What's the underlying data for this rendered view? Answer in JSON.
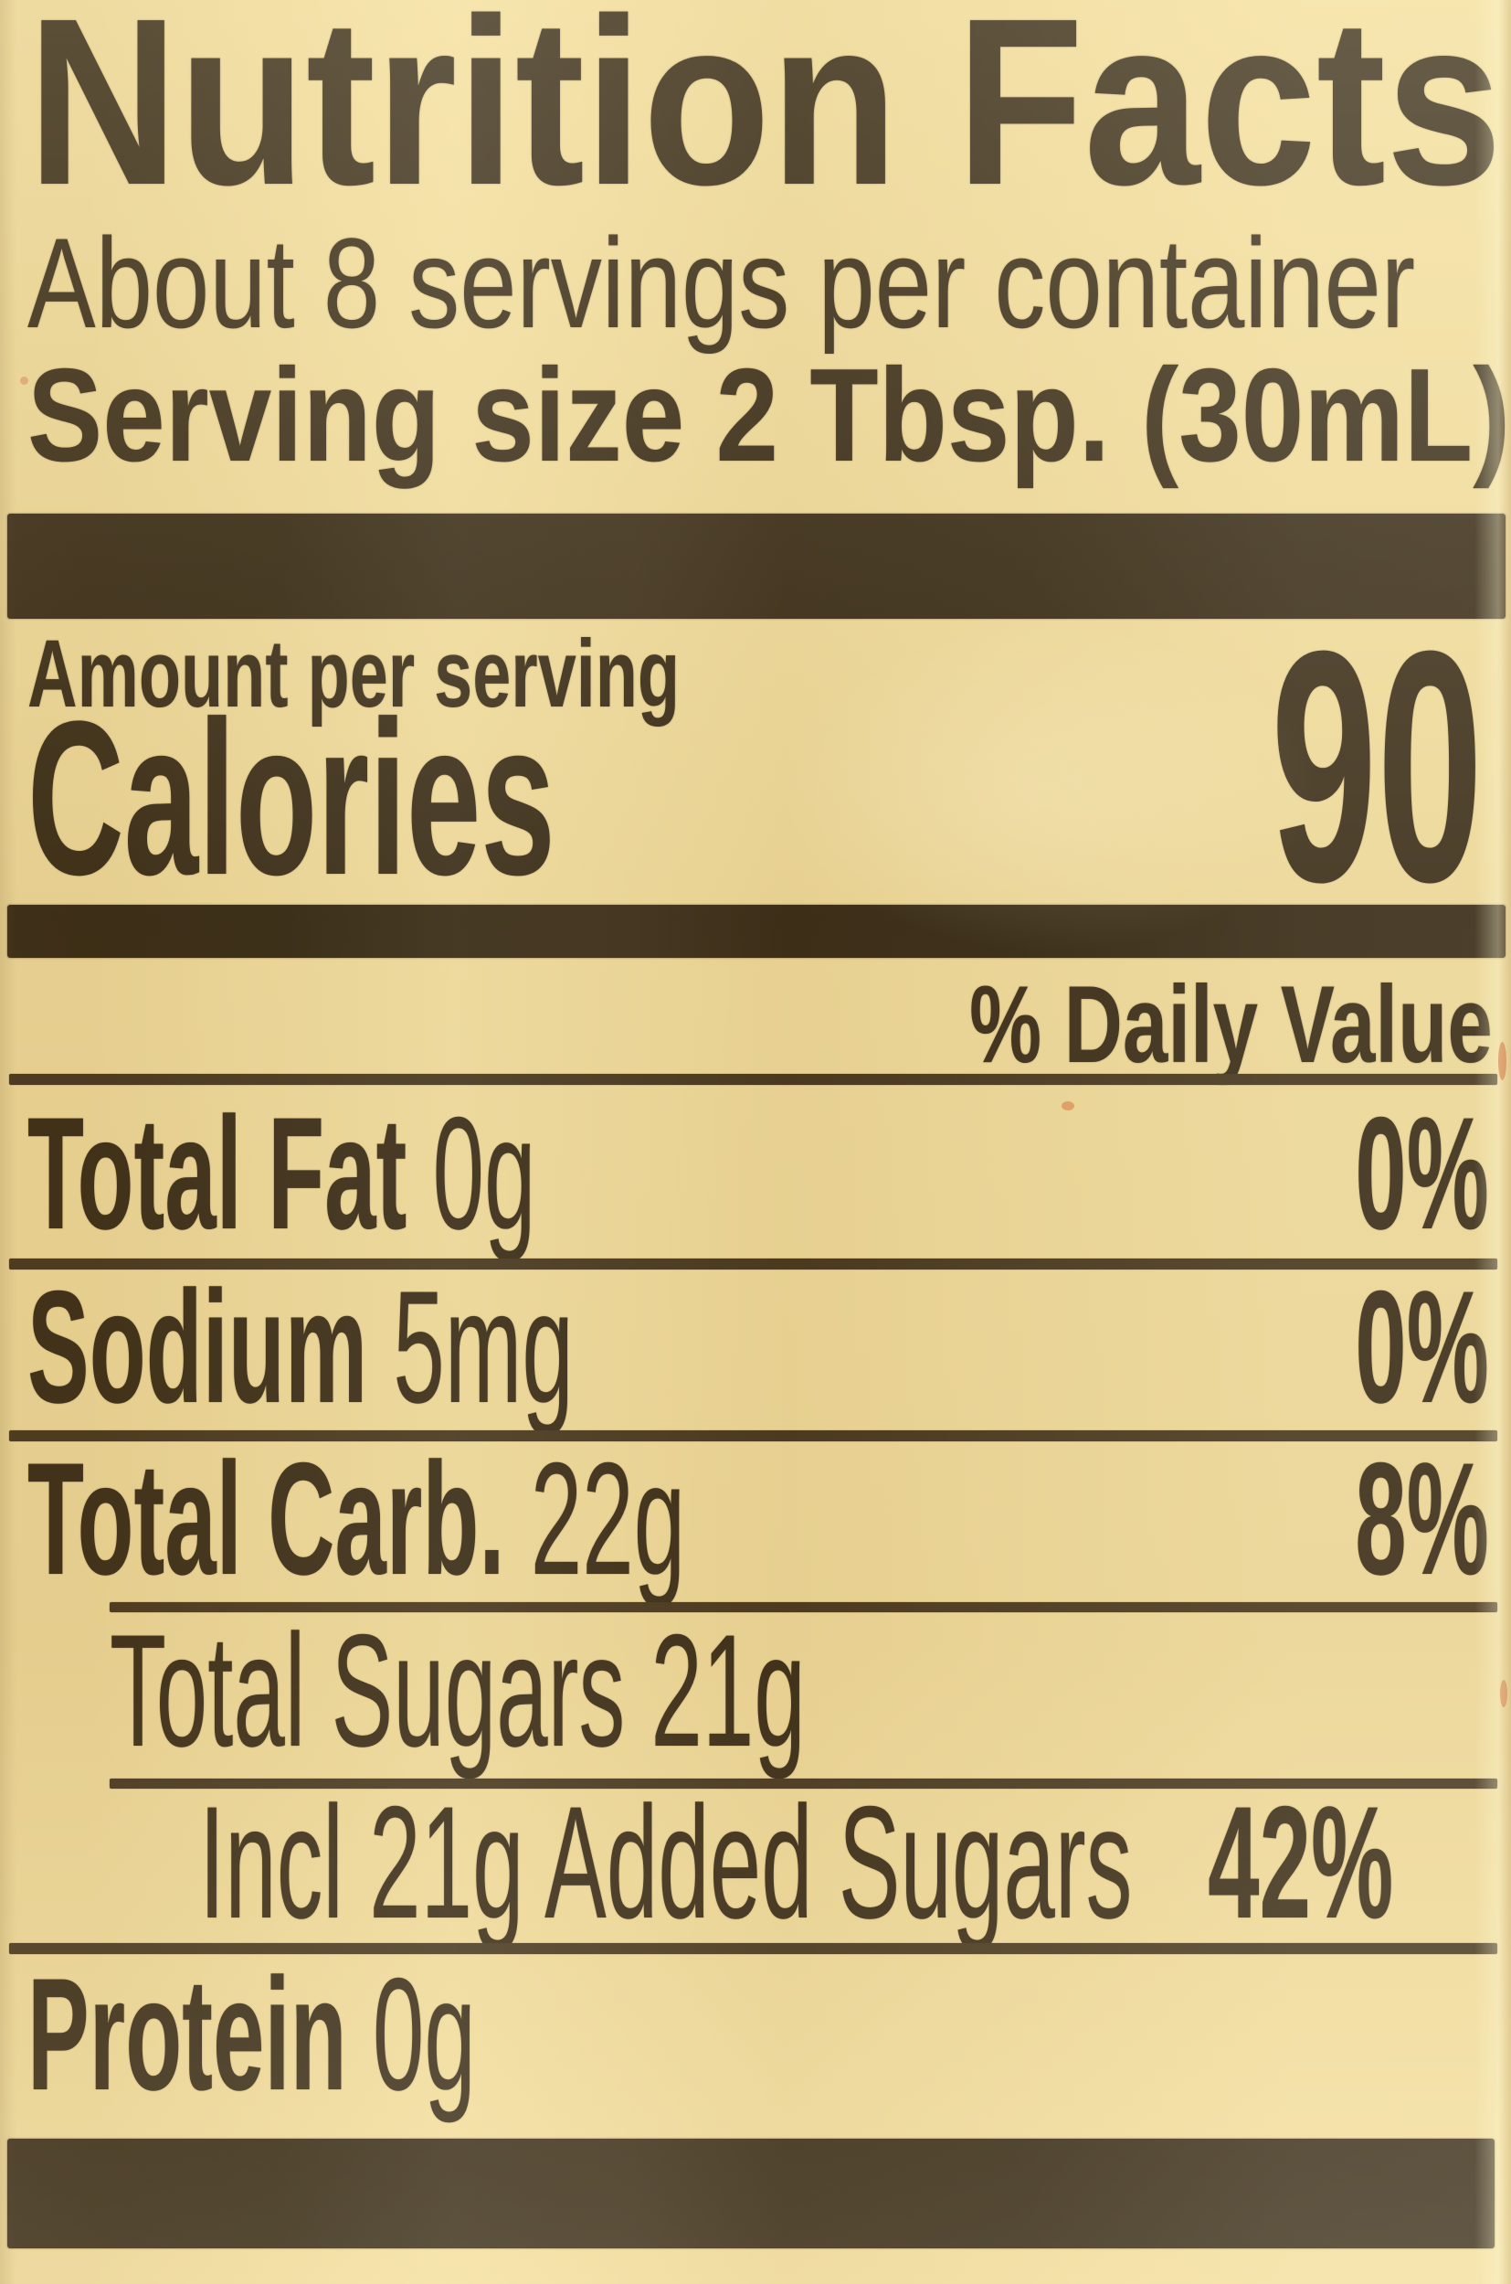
{
  "label": {
    "title": "Nutrition Facts",
    "servings_line": "About 8 servings per container",
    "serving_size_line": "Serving size 2 Tbsp. (30mL)",
    "amount_per_serving": "Amount per serving",
    "calories_word": "Calories",
    "calories_value": "90",
    "daily_value_header": "% Daily Value",
    "rows": [
      {
        "name": "Total Fat",
        "amount": "0g",
        "dv": "0%"
      },
      {
        "name": "Sodium",
        "amount": "5mg",
        "dv": "0%"
      },
      {
        "name": "Total Carb.",
        "amount": "22g",
        "dv": "8%"
      },
      {
        "name": "Total Sugars",
        "amount": "21g",
        "dv": ""
      },
      {
        "name": "Incl 21g Added Sugars",
        "amount": "",
        "dv": "42%"
      },
      {
        "name": "Protein",
        "amount": "0g",
        "dv": ""
      }
    ],
    "colors": {
      "background": "#f3dfa1",
      "ink": "#2b2012",
      "bar": "#281d10",
      "rule": "#392c1a"
    }
  }
}
